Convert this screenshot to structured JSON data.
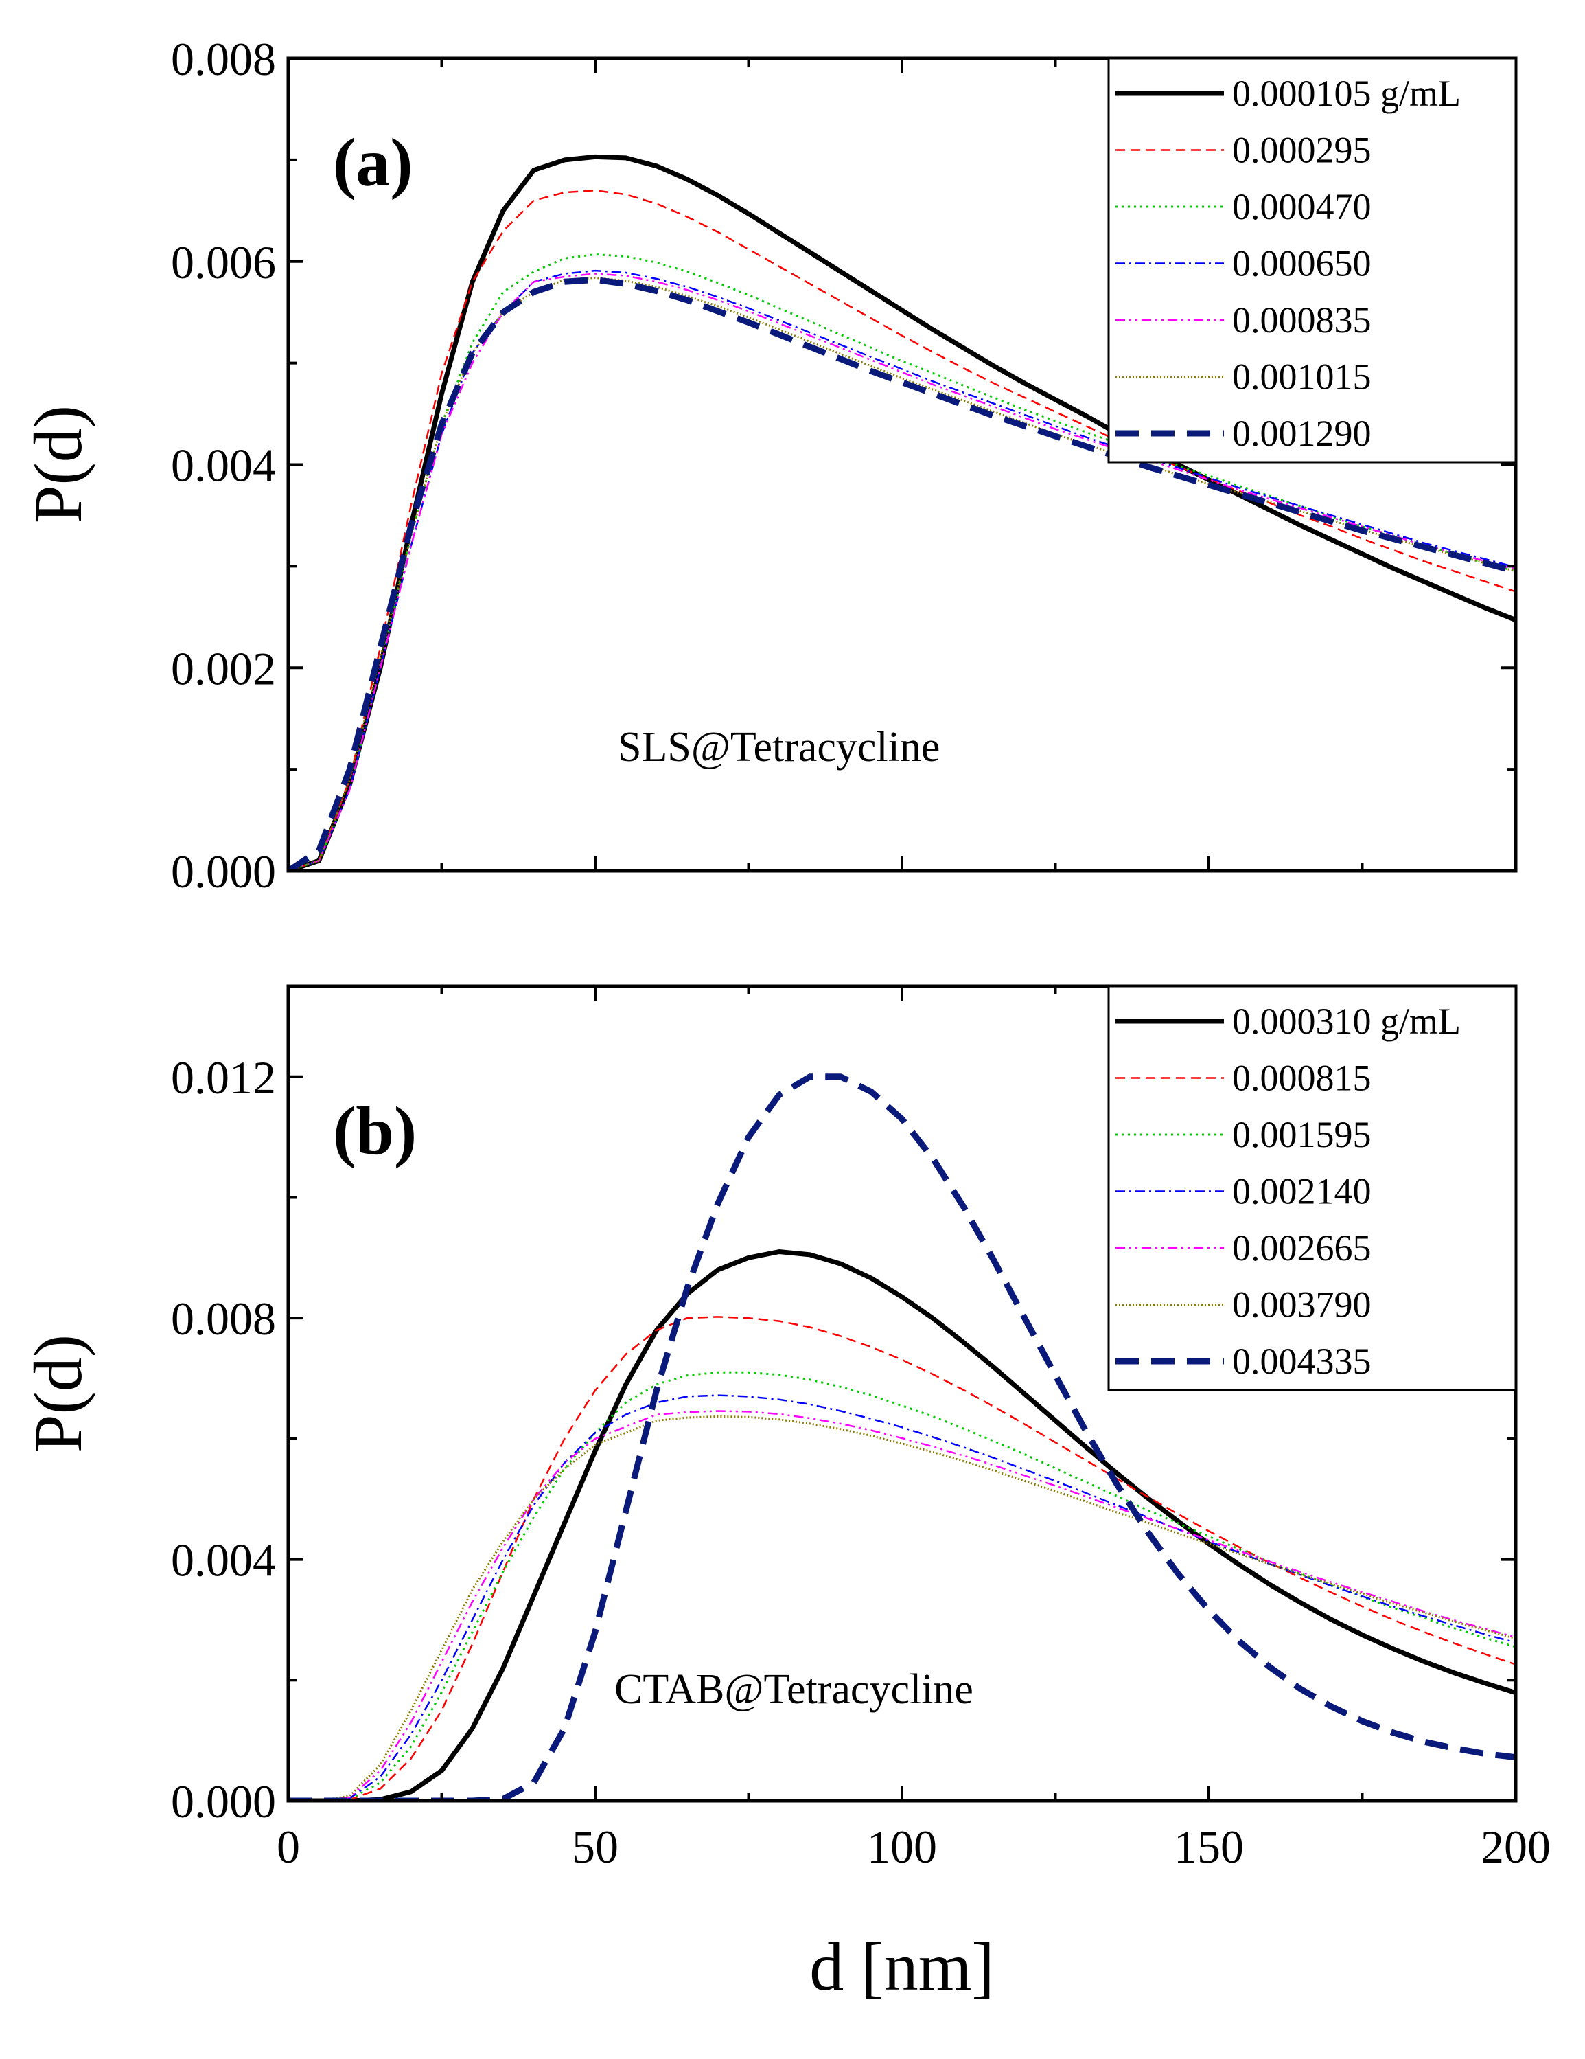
{
  "chart_data": [
    {
      "type": "line",
      "panel_label": "(a)",
      "annotation": "SLS@Tetracycline",
      "xlabel": "",
      "ylabel": "P(d)",
      "xlim": [
        0,
        200
      ],
      "ylim": [
        0,
        0.008
      ],
      "x_ticks": [
        0,
        50,
        100,
        150,
        200
      ],
      "x_tick_labels": [],
      "y_ticks": [
        0,
        0.002,
        0.004,
        0.006,
        0.008
      ],
      "y_tick_labels": [
        "0.000",
        "0.002",
        "0.004",
        "0.006",
        "0.008"
      ],
      "legend_position": "top-right",
      "x": [
        0,
        5,
        10,
        15,
        20,
        25,
        30,
        35,
        40,
        45,
        50,
        55,
        60,
        65,
        70,
        75,
        80,
        85,
        90,
        95,
        100,
        105,
        110,
        115,
        120,
        125,
        130,
        135,
        140,
        145,
        150,
        155,
        160,
        165,
        170,
        175,
        180,
        185,
        190,
        195,
        200
      ],
      "series": [
        {
          "name": "0.000105 g/mL",
          "color": "#000000",
          "dash": "solid",
          "width": 7,
          "values": [
            0,
            0.0001,
            0.00085,
            0.002,
            0.0034,
            0.0047,
            0.0058,
            0.0065,
            0.0069,
            0.007,
            0.00703,
            0.00702,
            0.00694,
            0.00681,
            0.00665,
            0.00647,
            0.00628,
            0.00609,
            0.0059,
            0.00571,
            0.00552,
            0.00533,
            0.00515,
            0.00497,
            0.0048,
            0.00464,
            0.00448,
            0.00431,
            0.00415,
            0.004,
            0.00385,
            0.0037,
            0.00355,
            0.0034,
            0.00326,
            0.00312,
            0.00298,
            0.00285,
            0.00272,
            0.00259,
            0.00247
          ]
        },
        {
          "name": "0.000295",
          "color": "#ff0000",
          "dash": "dashed-fine",
          "width": 2.5,
          "values": [
            0,
            0.0001,
            0.0009,
            0.0022,
            0.0036,
            0.0049,
            0.0058,
            0.0063,
            0.0066,
            0.00668,
            0.0067,
            0.00666,
            0.00657,
            0.00644,
            0.00629,
            0.00612,
            0.00595,
            0.00578,
            0.00561,
            0.00544,
            0.00527,
            0.00511,
            0.00495,
            0.0048,
            0.00466,
            0.00452,
            0.00438,
            0.00424,
            0.00411,
            0.00398,
            0.00386,
            0.00374,
            0.00362,
            0.0035,
            0.00339,
            0.00327,
            0.00316,
            0.00305,
            0.00295,
            0.00285,
            0.00275
          ]
        },
        {
          "name": "0.000470",
          "color": "#00cc00",
          "dash": "dotted",
          "width": 3,
          "values": [
            0,
            0.0001,
            0.0008,
            0.002,
            0.0033,
            0.0044,
            0.0052,
            0.0057,
            0.0059,
            0.00603,
            0.00607,
            0.00605,
            0.00599,
            0.0059,
            0.00579,
            0.00567,
            0.00554,
            0.00541,
            0.00528,
            0.00515,
            0.00502,
            0.0049,
            0.00478,
            0.00466,
            0.00454,
            0.00443,
            0.00432,
            0.00421,
            0.0041,
            0.00399,
            0.00389,
            0.00379,
            0.00369,
            0.00359,
            0.00349,
            0.00339,
            0.0033,
            0.00321,
            0.00312,
            0.00303,
            0.00295
          ]
        },
        {
          "name": "0.000650",
          "color": "#0000ff",
          "dash": "dashdot",
          "width": 2.5,
          "values": [
            0,
            0.0001,
            0.0008,
            0.002,
            0.0032,
            0.0043,
            0.0051,
            0.0055,
            0.0058,
            0.00588,
            0.00591,
            0.00589,
            0.00583,
            0.00575,
            0.00565,
            0.00554,
            0.00542,
            0.0053,
            0.00518,
            0.00506,
            0.00494,
            0.00482,
            0.00471,
            0.0046,
            0.00449,
            0.00438,
            0.00427,
            0.00417,
            0.00407,
            0.00397,
            0.00387,
            0.00377,
            0.00368,
            0.00359,
            0.0035,
            0.00341,
            0.00332,
            0.00323,
            0.00315,
            0.00307,
            0.00299
          ]
        },
        {
          "name": "0.000835",
          "color": "#ff00ff",
          "dash": "dashdotdot",
          "width": 2.5,
          "values": [
            0,
            0.0001,
            0.0008,
            0.002,
            0.0032,
            0.0043,
            0.005,
            0.0055,
            0.0058,
            0.00585,
            0.00588,
            0.00586,
            0.0058,
            0.00572,
            0.00562,
            0.00551,
            0.00539,
            0.00527,
            0.00515,
            0.00503,
            0.00491,
            0.00479,
            0.00468,
            0.00457,
            0.00446,
            0.00435,
            0.00425,
            0.00415,
            0.00405,
            0.00395,
            0.00385,
            0.00375,
            0.00366,
            0.00357,
            0.00348,
            0.00339,
            0.0033,
            0.00321,
            0.00313,
            0.00305,
            0.00297
          ]
        },
        {
          "name": "0.001015",
          "color": "#8b7d00",
          "dash": "shortdot",
          "width": 3,
          "values": [
            0,
            0.0001,
            0.0009,
            0.0021,
            0.0033,
            0.0044,
            0.0051,
            0.0055,
            0.0057,
            0.00582,
            0.00584,
            0.00581,
            0.00575,
            0.00566,
            0.00556,
            0.00545,
            0.00533,
            0.00521,
            0.00509,
            0.00497,
            0.00485,
            0.00474,
            0.00463,
            0.00452,
            0.00441,
            0.0043,
            0.0042,
            0.0041,
            0.004,
            0.0039,
            0.00381,
            0.00372,
            0.00363,
            0.00354,
            0.00345,
            0.00336,
            0.00327,
            0.00319,
            0.00311,
            0.00303,
            0.00295
          ]
        },
        {
          "name": "0.001290",
          "color": "#0a1a7a",
          "dash": "dashed-bold",
          "width": 9,
          "values": [
            0,
            0.0002,
            0.001,
            0.0022,
            0.0034,
            0.0044,
            0.0051,
            0.0055,
            0.0057,
            0.0058,
            0.00582,
            0.00578,
            0.00571,
            0.00562,
            0.00551,
            0.0054,
            0.00528,
            0.00516,
            0.00504,
            0.00492,
            0.00481,
            0.0047,
            0.00459,
            0.00448,
            0.00438,
            0.00428,
            0.00418,
            0.00408,
            0.00398,
            0.00389,
            0.0038,
            0.00371,
            0.00362,
            0.00353,
            0.00344,
            0.00335,
            0.00327,
            0.00319,
            0.00311,
            0.00303,
            0.00295
          ]
        }
      ]
    },
    {
      "type": "line",
      "panel_label": "(b)",
      "annotation": "CTAB@Tetracycline",
      "xlabel": "d [nm]",
      "ylabel": "P(d)",
      "xlim": [
        0,
        200
      ],
      "ylim": [
        0,
        0.0135
      ],
      "x_ticks": [
        0,
        50,
        100,
        150,
        200
      ],
      "x_tick_labels": [
        "0",
        "50",
        "100",
        "150",
        "200"
      ],
      "y_ticks": [
        0,
        0.004,
        0.008,
        0.012
      ],
      "y_tick_labels": [
        "0.000",
        "0.004",
        "0.008",
        "0.012"
      ],
      "legend_position": "top-right",
      "x": [
        0,
        5,
        10,
        15,
        20,
        25,
        30,
        35,
        40,
        45,
        50,
        55,
        60,
        65,
        70,
        75,
        80,
        85,
        90,
        95,
        100,
        105,
        110,
        115,
        120,
        125,
        130,
        135,
        140,
        145,
        150,
        155,
        160,
        165,
        170,
        175,
        180,
        185,
        190,
        195,
        200
      ],
      "series": [
        {
          "name": "0.000310 g/mL",
          "color": "#000000",
          "dash": "solid",
          "width": 7,
          "values": [
            0,
            0,
            0,
            2e-05,
            0.00015,
            0.0005,
            0.0012,
            0.0022,
            0.0034,
            0.0046,
            0.0058,
            0.0069,
            0.0078,
            0.0084,
            0.0088,
            0.009,
            0.0091,
            0.00905,
            0.0089,
            0.00866,
            0.00835,
            0.008,
            0.0076,
            0.00718,
            0.00674,
            0.0063,
            0.00586,
            0.00543,
            0.00502,
            0.00463,
            0.00426,
            0.00391,
            0.00358,
            0.00328,
            0.003,
            0.00275,
            0.00252,
            0.00231,
            0.00212,
            0.00195,
            0.00179
          ]
        },
        {
          "name": "0.000815",
          "color": "#ff0000",
          "dash": "dashed-fine",
          "width": 2.5,
          "values": [
            0,
            0,
            2e-05,
            0.0002,
            0.0007,
            0.0015,
            0.0026,
            0.0038,
            0.005,
            0.006,
            0.0068,
            0.0074,
            0.0078,
            0.008,
            0.00802,
            0.008,
            0.00795,
            0.00785,
            0.0077,
            0.00752,
            0.00731,
            0.00707,
            0.00681,
            0.00653,
            0.00624,
            0.00594,
            0.00564,
            0.00534,
            0.00504,
            0.00475,
            0.00447,
            0.0042,
            0.00394,
            0.00369,
            0.00345,
            0.00322,
            0.003,
            0.0028,
            0.00261,
            0.00243,
            0.00226
          ]
        },
        {
          "name": "0.001595",
          "color": "#00cc00",
          "dash": "dotted",
          "width": 3,
          "values": [
            0,
            0,
            3e-05,
            0.0003,
            0.0009,
            0.0018,
            0.0028,
            0.0038,
            0.0047,
            0.0055,
            0.0061,
            0.0066,
            0.0069,
            0.00705,
            0.0071,
            0.0071,
            0.00706,
            0.00698,
            0.00686,
            0.00672,
            0.00655,
            0.00637,
            0.00617,
            0.00596,
            0.00574,
            0.00551,
            0.00528,
            0.00505,
            0.00482,
            0.0046,
            0.00438,
            0.00417,
            0.00396,
            0.00376,
            0.00357,
            0.00338,
            0.0032,
            0.00303,
            0.00286,
            0.0027,
            0.00255
          ]
        },
        {
          "name": "0.002140",
          "color": "#0000ff",
          "dash": "dashdot",
          "width": 2.5,
          "values": [
            0,
            0,
            4e-05,
            0.0004,
            0.0011,
            0.002,
            0.003,
            0.004,
            0.0049,
            0.0056,
            0.0061,
            0.0064,
            0.0066,
            0.0067,
            0.00672,
            0.0067,
            0.00665,
            0.00657,
            0.00646,
            0.00633,
            0.00619,
            0.00603,
            0.00586,
            0.00568,
            0.00549,
            0.0053,
            0.0051,
            0.0049,
            0.0047,
            0.0045,
            0.0043,
            0.00411,
            0.00392,
            0.00374,
            0.00356,
            0.00339,
            0.00322,
            0.00306,
            0.00291,
            0.00276,
            0.00262
          ]
        },
        {
          "name": "0.002665",
          "color": "#ff00ff",
          "dash": "dashdotdot",
          "width": 2.5,
          "values": [
            0,
            0,
            6e-05,
            0.0005,
            0.0013,
            0.0023,
            0.0033,
            0.0042,
            0.005,
            0.0056,
            0.006,
            0.0062,
            0.0064,
            0.00644,
            0.00646,
            0.00645,
            0.00641,
            0.00634,
            0.00625,
            0.00614,
            0.00601,
            0.00587,
            0.00572,
            0.00556,
            0.00539,
            0.00522,
            0.00504,
            0.00486,
            0.00468,
            0.0045,
            0.00432,
            0.00414,
            0.00396,
            0.00379,
            0.00362,
            0.00346,
            0.0033,
            0.00314,
            0.00299,
            0.00285,
            0.00271
          ]
        },
        {
          "name": "0.003790",
          "color": "#8b7d00",
          "dash": "shortdot",
          "width": 3,
          "values": [
            0,
            0,
            8e-05,
            0.0006,
            0.0015,
            0.0025,
            0.0035,
            0.0043,
            0.005,
            0.0055,
            0.0059,
            0.0061,
            0.0063,
            0.00635,
            0.00637,
            0.00636,
            0.00632,
            0.00625,
            0.00616,
            0.00605,
            0.00592,
            0.00578,
            0.00563,
            0.00547,
            0.0053,
            0.00513,
            0.00496,
            0.00478,
            0.00461,
            0.00443,
            0.00426,
            0.00409,
            0.00392,
            0.00375,
            0.00359,
            0.00343,
            0.00327,
            0.00312,
            0.00297,
            0.00283,
            0.00269
          ]
        },
        {
          "name": "0.004335",
          "color": "#0a1a7a",
          "dash": "dashed-bold",
          "width": 9,
          "values": [
            0,
            0,
            0,
            0,
            0,
            0,
            0,
            3e-05,
            0.0003,
            0.0012,
            0.0028,
            0.0048,
            0.0068,
            0.0085,
            0.0099,
            0.011,
            0.0117,
            0.012,
            0.012,
            0.01175,
            0.0113,
            0.01065,
            0.00985,
            0.00895,
            0.008,
            0.00705,
            0.00612,
            0.00525,
            0.00446,
            0.00376,
            0.00316,
            0.00264,
            0.00221,
            0.00185,
            0.00156,
            0.00132,
            0.00113,
            0.00098,
            0.00087,
            0.00078,
            0.00072
          ]
        }
      ]
    }
  ]
}
